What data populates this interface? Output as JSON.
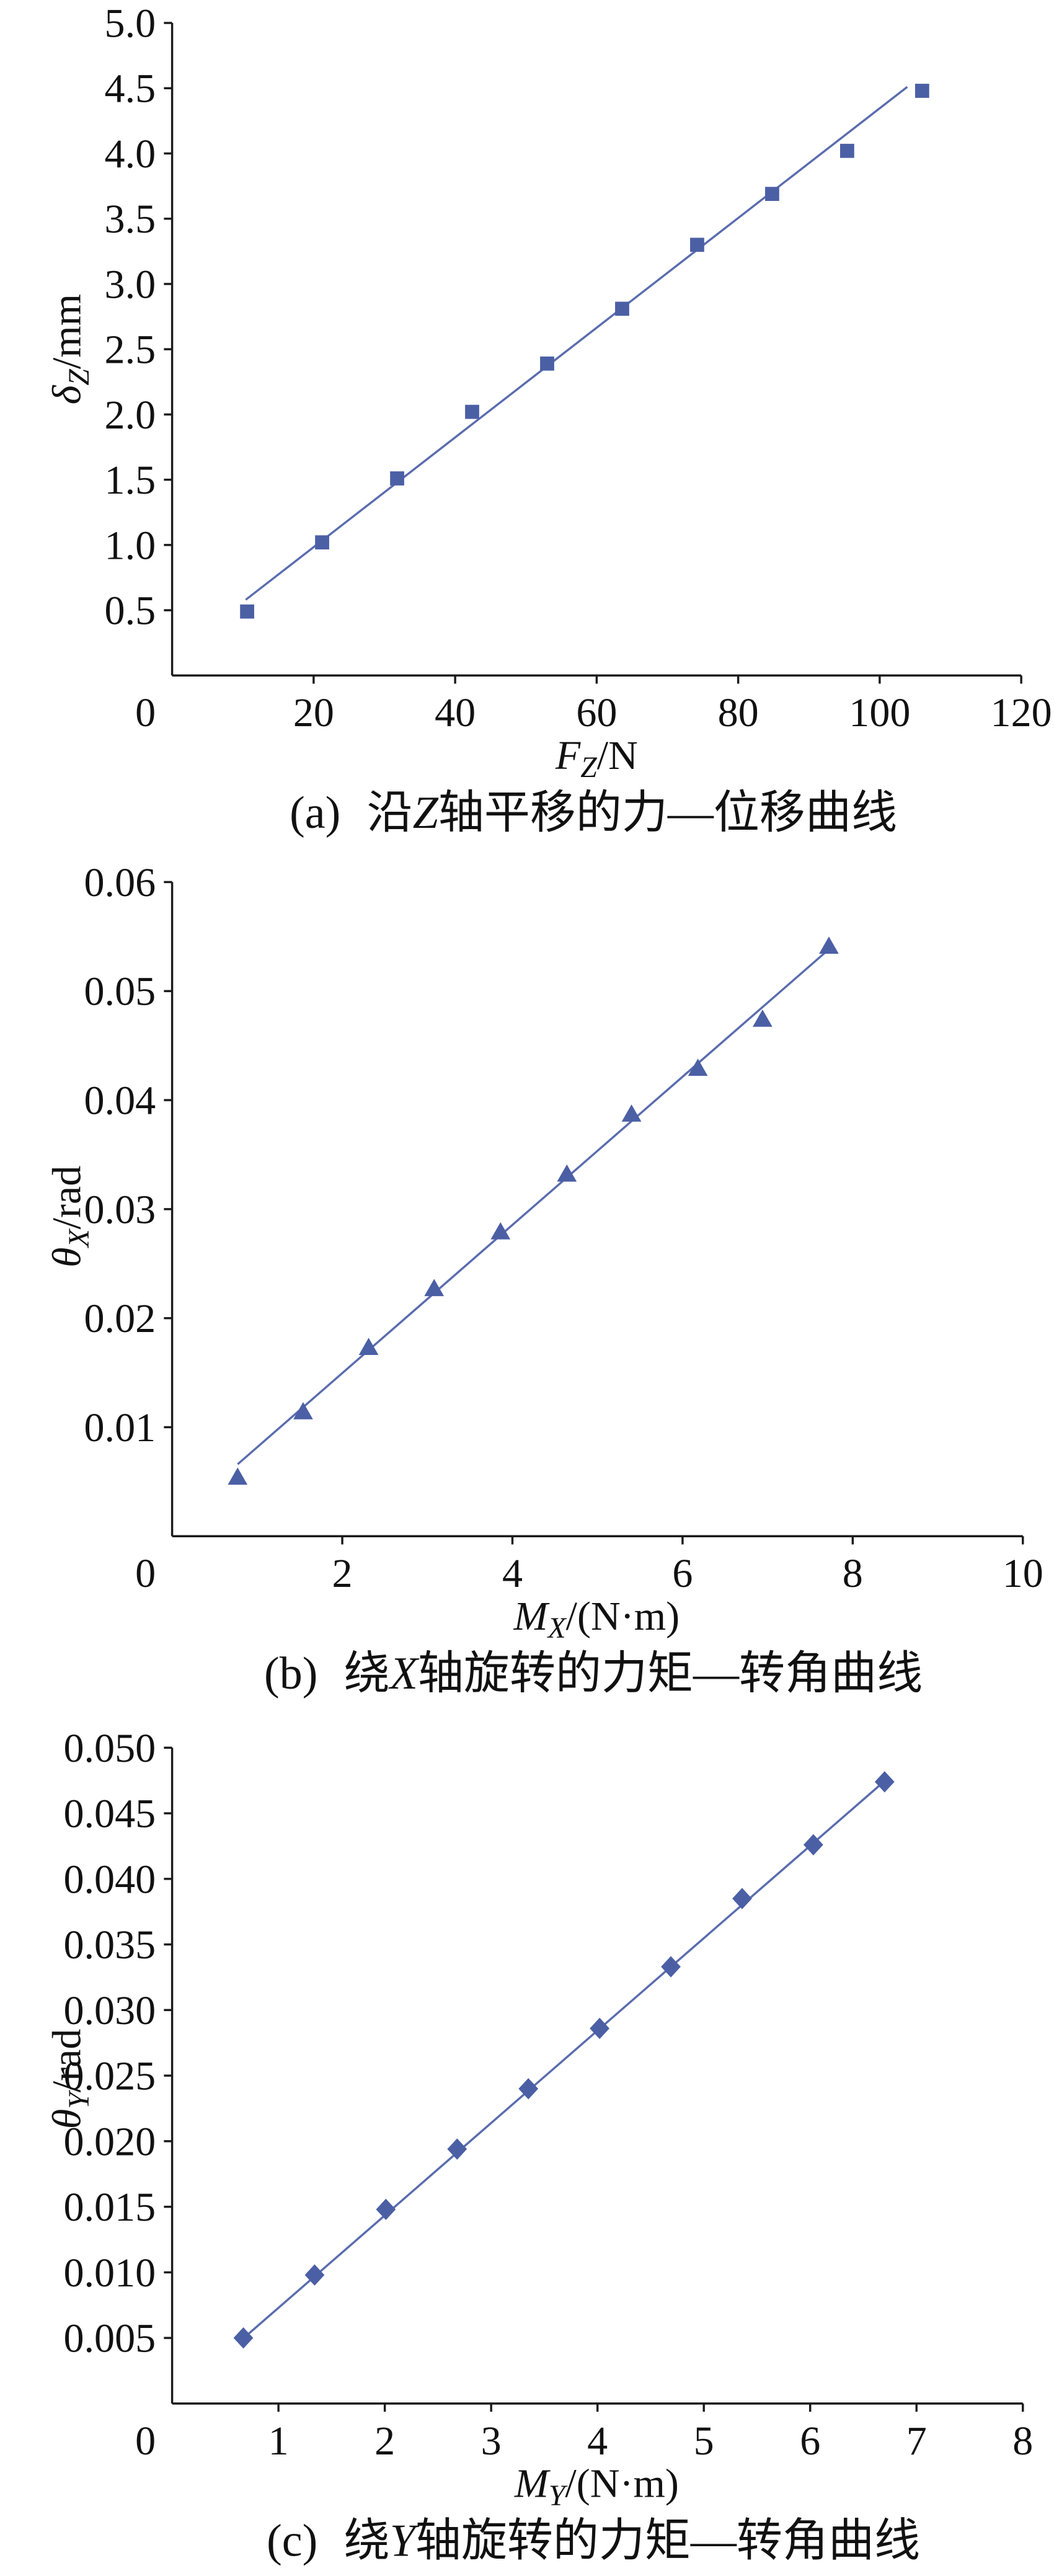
{
  "chart_data": [
    {
      "type": "scatter",
      "caption": {
        "label": "(a)",
        "pre": "沿",
        "axis": "Z",
        "post": "轴平移的力—位移曲线"
      },
      "xlabel": {
        "symbol": "F",
        "sub": "Z",
        "unit": "/N"
      },
      "ylabel": {
        "symbol": "δ",
        "sub": "Z",
        "unit": "/mm"
      },
      "xlim": [
        0,
        120
      ],
      "ylim": [
        0,
        5.0
      ],
      "xticks": [
        "0",
        "20",
        "40",
        "60",
        "80",
        "100",
        "120"
      ],
      "yticks": [
        "0.5",
        "1.0",
        "1.5",
        "2.0",
        "2.5",
        "3.0",
        "3.5",
        "4.0",
        "4.5",
        "5.0"
      ],
      "grid": false,
      "legend": "none",
      "marker": "square",
      "color": "#4b5fa5",
      "fit_color": "#5a6cae",
      "series": [
        {
          "x": [
            10.6,
            21.2,
            31.8,
            42.4,
            53.0,
            63.6,
            74.2,
            84.8,
            95.4,
            106.0
          ],
          "y": [
            0.49,
            1.02,
            1.51,
            2.02,
            2.39,
            2.81,
            3.3,
            3.69,
            4.02,
            4.48
          ]
        }
      ],
      "fit": {
        "x": [
          10.4,
          103.9
        ],
        "y": [
          0.58,
          4.51
        ]
      }
    },
    {
      "type": "scatter",
      "caption": {
        "label": "(b)",
        "pre": "绕",
        "axis": "X",
        "post": "轴旋转的力矩—转角曲线"
      },
      "xlabel": {
        "symbol": "M",
        "sub": "X",
        "unit": "/(N·m)"
      },
      "ylabel": {
        "symbol": "θ",
        "sub": "X",
        "unit": "/rad"
      },
      "xlim": [
        0,
        10
      ],
      "ylim": [
        0,
        0.06
      ],
      "xticks": [
        "0",
        "2",
        "4",
        "6",
        "8",
        "10"
      ],
      "yticks": [
        "0.01",
        "0.02",
        "0.03",
        "0.04",
        "0.05",
        "0.06"
      ],
      "grid": false,
      "legend": "none",
      "marker": "triangle",
      "color": "#4b5fa5",
      "fit_color": "#5a6cae",
      "series": [
        {
          "x": [
            0.77,
            1.54,
            2.31,
            3.08,
            3.86,
            4.64,
            5.4,
            6.18,
            6.94,
            7.72
          ],
          "y": [
            0.0054,
            0.0114,
            0.0173,
            0.0227,
            0.0279,
            0.0332,
            0.0387,
            0.0429,
            0.0474,
            0.0541
          ]
        }
      ],
      "fit": {
        "x": [
          0.77,
          7.73
        ],
        "y": [
          0.0066,
          0.0539
        ]
      }
    },
    {
      "type": "scatter",
      "caption": {
        "label": "(c)",
        "pre": "绕",
        "axis": "Y",
        "post": "轴旋转的力矩—转角曲线"
      },
      "xlabel": {
        "symbol": "M",
        "sub": "Y",
        "unit": "/(N·m)"
      },
      "ylabel": {
        "symbol": "θ",
        "sub": "Y",
        "unit": "/rad"
      },
      "xlim": [
        0,
        8
      ],
      "ylim": [
        0,
        0.05
      ],
      "xticks": [
        "0",
        "1",
        "2",
        "3",
        "4",
        "5",
        "6",
        "7",
        "8"
      ],
      "yticks": [
        "0.005",
        "0.010",
        "0.015",
        "0.020",
        "0.025",
        "0.030",
        "0.035",
        "0.040",
        "0.045",
        "0.050"
      ],
      "grid": false,
      "legend": "none",
      "marker": "diamond",
      "color": "#4b5fa5",
      "fit_color": "#5a6cae",
      "series": [
        {
          "x": [
            0.67,
            1.34,
            2.01,
            2.68,
            3.35,
            4.02,
            4.69,
            5.36,
            6.03,
            6.7
          ],
          "y": [
            0.005,
            0.0098,
            0.0148,
            0.0194,
            0.024,
            0.0286,
            0.0333,
            0.0385,
            0.0426,
            0.0474
          ]
        }
      ],
      "fit": {
        "x": [
          0.66,
          6.72
        ],
        "y": [
          0.0049,
          0.0476
        ]
      }
    }
  ]
}
